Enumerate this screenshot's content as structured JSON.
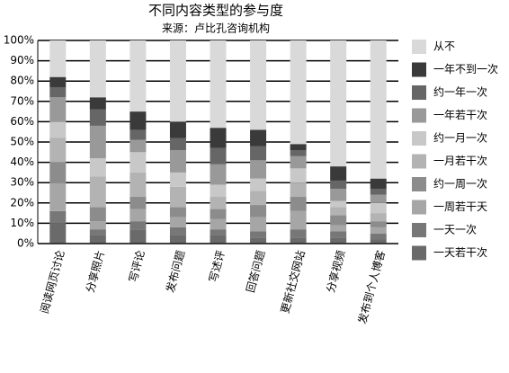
{
  "chart_data": {
    "type": "stacked-bar",
    "title": "不同内容类型的参与度",
    "subtitle": "来源：卢比孔咨询机构",
    "categories": [
      "阅读网页讨论",
      "分享照片",
      "写评论",
      "发布问题",
      "写述评",
      "回答问题",
      "更新社交网站",
      "分享视频",
      "发布到个人博客"
    ],
    "series": [
      {
        "name": "从不",
        "color": "#d9d9d9",
        "values": [
          18,
          28,
          35,
          40,
          43,
          44,
          51,
          62,
          68
        ]
      },
      {
        "name": "一年不到一次",
        "color": "#3a3a3a",
        "values": [
          5,
          6,
          9,
          8,
          10,
          8,
          3,
          7,
          5
        ]
      },
      {
        "name": "约一年一次",
        "color": "#666666",
        "values": [
          5,
          8,
          5,
          6,
          8,
          7,
          3,
          4,
          3
        ]
      },
      {
        "name": "一年若干次",
        "color": "#999999",
        "values": [
          12,
          16,
          6,
          11,
          10,
          9,
          6,
          6,
          4
        ]
      },
      {
        "name": "约一月一次",
        "color": "#c8c8c8",
        "values": [
          8,
          9,
          10,
          7,
          6,
          6,
          7,
          3,
          5
        ]
      },
      {
        "name": "一月若干次",
        "color": "#b3b3b3",
        "values": [
          12,
          15,
          12,
          10,
          6,
          7,
          7,
          4,
          4
        ]
      },
      {
        "name": "约一周一次",
        "color": "#8c8c8c",
        "values": [
          10,
          7,
          6,
          5,
          5,
          6,
          7,
          5,
          3
        ]
      },
      {
        "name": "一周若干天",
        "color": "#a6a6a6",
        "values": [
          14,
          4,
          6,
          5,
          5,
          7,
          9,
          3,
          3
        ]
      },
      {
        "name": "一天一次",
        "color": "#777777",
        "values": [
          6,
          3,
          4,
          4,
          3,
          3,
          4,
          3,
          3
        ]
      },
      {
        "name": "一天若干次",
        "color": "#6a6a6a",
        "values": [
          10,
          4,
          7,
          4,
          4,
          3,
          3,
          3,
          2
        ]
      }
    ],
    "ylim": [
      0,
      100
    ],
    "yticks": [
      {
        "value": 0,
        "label": "0%"
      },
      {
        "value": 10,
        "label": "10%"
      },
      {
        "value": 20,
        "label": "20%"
      },
      {
        "value": 30,
        "label": "30%"
      },
      {
        "value": 40,
        "label": "40%"
      },
      {
        "value": 50,
        "label": "50%"
      },
      {
        "value": 60,
        "label": "60%"
      },
      {
        "value": 70,
        "label": "70%"
      },
      {
        "value": 80,
        "label": "80%"
      },
      {
        "value": 90,
        "label": "90%"
      },
      {
        "value": 100,
        "label": "100%"
      }
    ],
    "grid": true,
    "legend": "right"
  }
}
